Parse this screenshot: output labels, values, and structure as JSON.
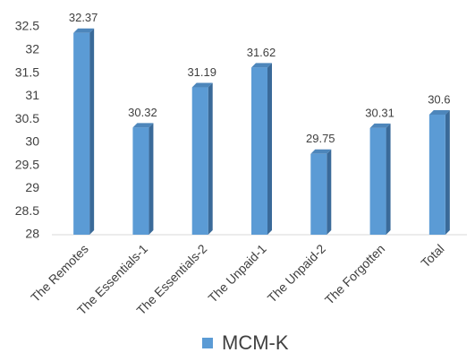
{
  "chart_data": {
    "type": "bar",
    "categories": [
      "The Remotes",
      "The Essentials-1",
      "The Essentials-2",
      "The Unpaid-1",
      "The Unpaid-2",
      "The Forgotten",
      "Total"
    ],
    "series": [
      {
        "name": "MCM-K",
        "color": "#5b9bd5",
        "values": [
          32.37,
          30.32,
          31.19,
          31.62,
          29.75,
          30.31,
          30.6
        ]
      }
    ],
    "ylim": [
      28,
      32.5
    ],
    "yticks": [
      28,
      28.5,
      29,
      29.5,
      30,
      30.5,
      31,
      31.5,
      32,
      32.5
    ],
    "grid": false,
    "legend": "bottom"
  }
}
